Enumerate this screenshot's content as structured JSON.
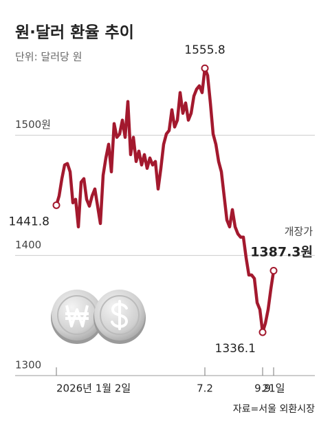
{
  "chart_data": {
    "type": "line",
    "title": "원·달러 환율 추이",
    "subtitle": "단위: 달러당 원",
    "annotation": "개장가",
    "source": "자료=서울 외환시장",
    "color": "#a3192e",
    "grid": true,
    "ylim": [
      1300,
      1600
    ],
    "yticks": [
      1300,
      1400,
      {
        "value": 1500,
        "label": "1500원"
      }
    ],
    "categories": [
      "2026년 1월 2일",
      null,
      null,
      null,
      null,
      null,
      null,
      null,
      null,
      null,
      null,
      null,
      null,
      null,
      null,
      null,
      null,
      null,
      null,
      null,
      null,
      null,
      null,
      null,
      null,
      null,
      null,
      null,
      null,
      null,
      null,
      null,
      null,
      null,
      null,
      null,
      null,
      null,
      null,
      null,
      null,
      null,
      null,
      null,
      null,
      null,
      null,
      null,
      null,
      null,
      null,
      null,
      null,
      null,
      "7.2",
      null,
      null,
      null,
      null,
      null,
      null,
      null,
      null,
      null,
      null,
      null,
      null,
      null,
      null,
      null,
      null,
      null,
      null,
      null,
      null,
      "9.9",
      null,
      null,
      null,
      "21일"
    ],
    "values": [
      1441.8,
      1449.6,
      1463.9,
      1475.3,
      1476.5,
      1469.6,
      1443.8,
      1446.7,
      1423.8,
      1461,
      1463.9,
      1446.7,
      1441,
      1449.6,
      1455.3,
      1441,
      1426.6,
      1466.7,
      1481.1,
      1492.5,
      1469.6,
      1509.7,
      1498.3,
      1501.1,
      1512.6,
      1498.3,
      1528.1,
      1483.9,
      1498.3,
      1478.2,
      1486.8,
      1475.3,
      1483.9,
      1472.5,
      1481.1,
      1475.3,
      1478.2,
      1455.3,
      1472.5,
      1492.5,
      1501.1,
      1504,
      1521.2,
      1506.9,
      1512.6,
      1535.5,
      1518.3,
      1526.9,
      1512.6,
      1518.3,
      1532.6,
      1538.4,
      1541.2,
      1535.5,
      1555.8,
      1549.8,
      1526.9,
      1501.1,
      1492.5,
      1478.2,
      1469.6,
      1449.6,
      1429.5,
      1423.8,
      1438.1,
      1423.8,
      1418,
      1415.2,
      1415.2,
      1398,
      1383.7,
      1383.7,
      1380.8,
      1360.7,
      1355,
      1336.1,
      1343.5,
      1355,
      1372.2,
      1387.3
    ],
    "value_labels": [
      "1441.8",
      null,
      null,
      null,
      null,
      null,
      null,
      null,
      null,
      null,
      null,
      null,
      null,
      null,
      null,
      null,
      null,
      null,
      null,
      null,
      null,
      null,
      null,
      null,
      null,
      null,
      null,
      null,
      null,
      null,
      null,
      null,
      null,
      null,
      null,
      null,
      null,
      null,
      null,
      null,
      null,
      null,
      null,
      null,
      null,
      null,
      null,
      null,
      null,
      null,
      null,
      null,
      null,
      null,
      "1555.8",
      null,
      null,
      null,
      null,
      null,
      null,
      null,
      null,
      null,
      null,
      null,
      null,
      null,
      null,
      null,
      null,
      null,
      null,
      null,
      null,
      "1336.1",
      null,
      null,
      null,
      "1387.3원"
    ]
  }
}
